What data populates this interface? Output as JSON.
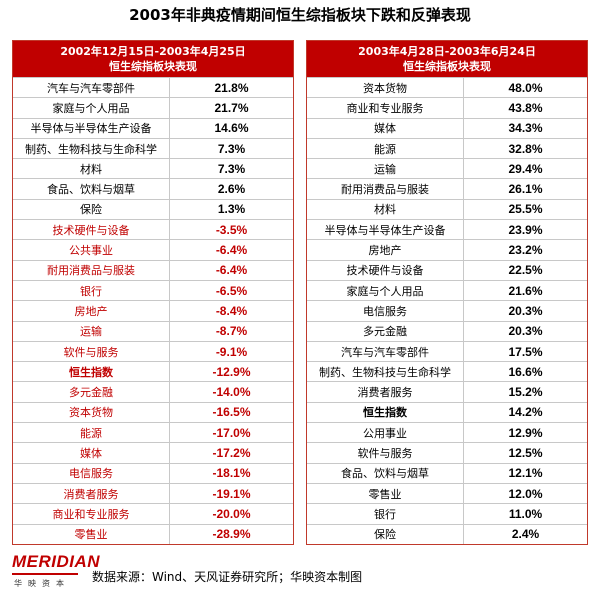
{
  "title": "2003年非典疫情期间恒生综指板块下跌和反弹表现",
  "tables": [
    {
      "header": [
        "2002年12月15日-2003年4月25日",
        "恒生综指板块表现"
      ],
      "rows": [
        {
          "name": "汽车与汽车零部件",
          "value": "21.8%"
        },
        {
          "name": "家庭与个人用品",
          "value": "21.7%"
        },
        {
          "name": "半导体与半导体生产设备",
          "value": "14.6%"
        },
        {
          "name": "制药、生物科技与生命科学",
          "value": "7.3%"
        },
        {
          "name": "材料",
          "value": "7.3%"
        },
        {
          "name": "食品、饮料与烟草",
          "value": "2.6%"
        },
        {
          "name": "保险",
          "value": "1.3%"
        },
        {
          "name": "技术硬件与设备",
          "value": "-3.5%"
        },
        {
          "name": "公共事业",
          "value": "-6.4%"
        },
        {
          "name": "耐用消费品与服装",
          "value": "-6.4%"
        },
        {
          "name": "银行",
          "value": "-6.5%"
        },
        {
          "name": "房地产",
          "value": "-8.4%"
        },
        {
          "name": "运输",
          "value": "-8.7%"
        },
        {
          "name": "软件与服务",
          "value": "-9.1%"
        },
        {
          "name": "恒生指数",
          "value": "-12.9%",
          "bold": true
        },
        {
          "name": "多元金融",
          "value": "-14.0%"
        },
        {
          "name": "资本货物",
          "value": "-16.5%"
        },
        {
          "name": "能源",
          "value": "-17.0%"
        },
        {
          "name": "媒体",
          "value": "-17.2%"
        },
        {
          "name": "电信服务",
          "value": "-18.1%"
        },
        {
          "name": "消费者服务",
          "value": "-19.1%"
        },
        {
          "name": "商业和专业服务",
          "value": "-20.0%"
        },
        {
          "name": "零售业",
          "value": "-28.9%"
        }
      ]
    },
    {
      "header": [
        "2003年4月28日-2003年6月24日",
        "恒生综指板块表现"
      ],
      "rows": [
        {
          "name": "资本货物",
          "value": "48.0%"
        },
        {
          "name": "商业和专业服务",
          "value": "43.8%"
        },
        {
          "name": "媒体",
          "value": "34.3%"
        },
        {
          "name": "能源",
          "value": "32.8%"
        },
        {
          "name": "运输",
          "value": "29.4%"
        },
        {
          "name": "耐用消费品与服装",
          "value": "26.1%"
        },
        {
          "name": "材料",
          "value": "25.5%"
        },
        {
          "name": "半导体与半导体生产设备",
          "value": "23.9%"
        },
        {
          "name": "房地产",
          "value": "23.2%"
        },
        {
          "name": "技术硬件与设备",
          "value": "22.5%"
        },
        {
          "name": "家庭与个人用品",
          "value": "21.6%"
        },
        {
          "name": "电信服务",
          "value": "20.3%"
        },
        {
          "name": "多元金融",
          "value": "20.3%"
        },
        {
          "name": "汽车与汽车零部件",
          "value": "17.5%"
        },
        {
          "name": "制药、生物科技与生命科学",
          "value": "16.6%"
        },
        {
          "name": "消费者服务",
          "value": "15.2%"
        },
        {
          "name": "恒生指数",
          "value": "14.2%",
          "bold": true
        },
        {
          "name": "公用事业",
          "value": "12.9%"
        },
        {
          "name": "软件与服务",
          "value": "12.5%"
        },
        {
          "name": "食品、饮料与烟草",
          "value": "12.1%"
        },
        {
          "name": "零售业",
          "value": "12.0%"
        },
        {
          "name": "银行",
          "value": "11.0%"
        },
        {
          "name": "保险",
          "value": "2.4%"
        }
      ]
    }
  ],
  "footer": {
    "logo": "MERIDIAN",
    "logo_sub": "华映资本",
    "source": "数据来源：Wind、天风证券研究所；华映资本制图"
  }
}
